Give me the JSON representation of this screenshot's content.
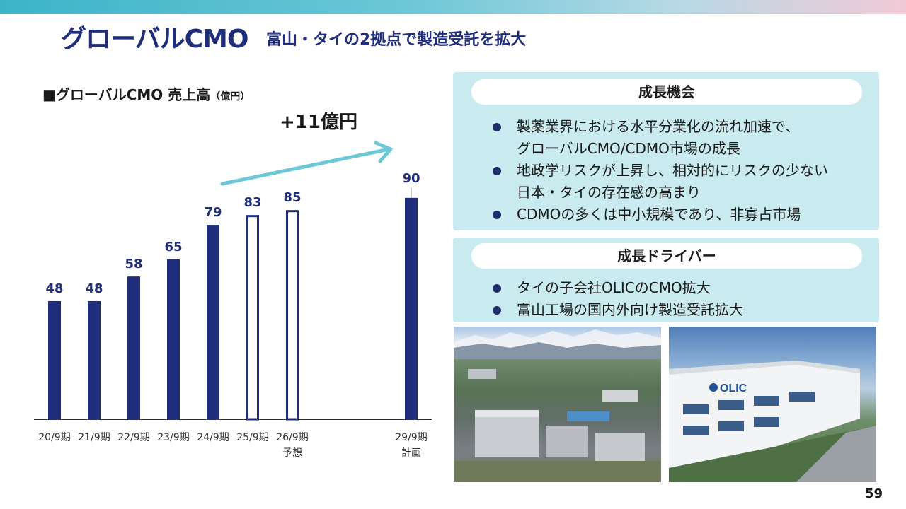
{
  "header": {
    "title": "グローバルCMO",
    "subtitle": "富山・タイの2拠点で製造受託を拡大"
  },
  "chart_heading": {
    "text": "■グローバルCMO 売上高",
    "unit": "（億円）"
  },
  "chart_data": {
    "type": "bar",
    "title": "■グローバルCMO 売上高（億円）",
    "categories": [
      "20/9期",
      "21/9期",
      "22/9期",
      "23/9期",
      "24/9期",
      "25/9期",
      "26/9期",
      "29/9期"
    ],
    "sublabels": [
      "",
      "",
      "",
      "",
      "",
      "",
      "予想",
      "計画"
    ],
    "values": [
      48,
      48,
      58,
      65,
      79,
      83,
      85,
      90
    ],
    "bar_style": [
      "filled",
      "filled",
      "filled",
      "filled",
      "filled",
      "outline",
      "outline",
      "filled"
    ],
    "annotation": "+11億円",
    "arrow_from_category": "24/9期",
    "arrow_to_category": "29/9期",
    "ylim": [
      0,
      100
    ],
    "colors": {
      "bar": "#1f2d7b",
      "arrow": "#6cc7d6",
      "label": "#1f2d7b"
    }
  },
  "panel_opportunity": {
    "heading": "成長機会",
    "items": [
      "製薬業界における水平分業化の流れ加速で、\nグローバルCMO/CDMO市場の成長",
      "地政学リスクが上昇し、相対的にリスクの少ない\n日本・タイの存在感の高まり",
      "CDMOの多くは中小規模であり、非寡占市場"
    ]
  },
  "panel_driver": {
    "heading": "成長ドライバー",
    "items": [
      "タイの子会社OLICのCMO拡大",
      "富山工場の国内外向け製造受託拡大"
    ]
  },
  "photos": {
    "photo2_sign": "OLIC"
  },
  "page_number": "59"
}
